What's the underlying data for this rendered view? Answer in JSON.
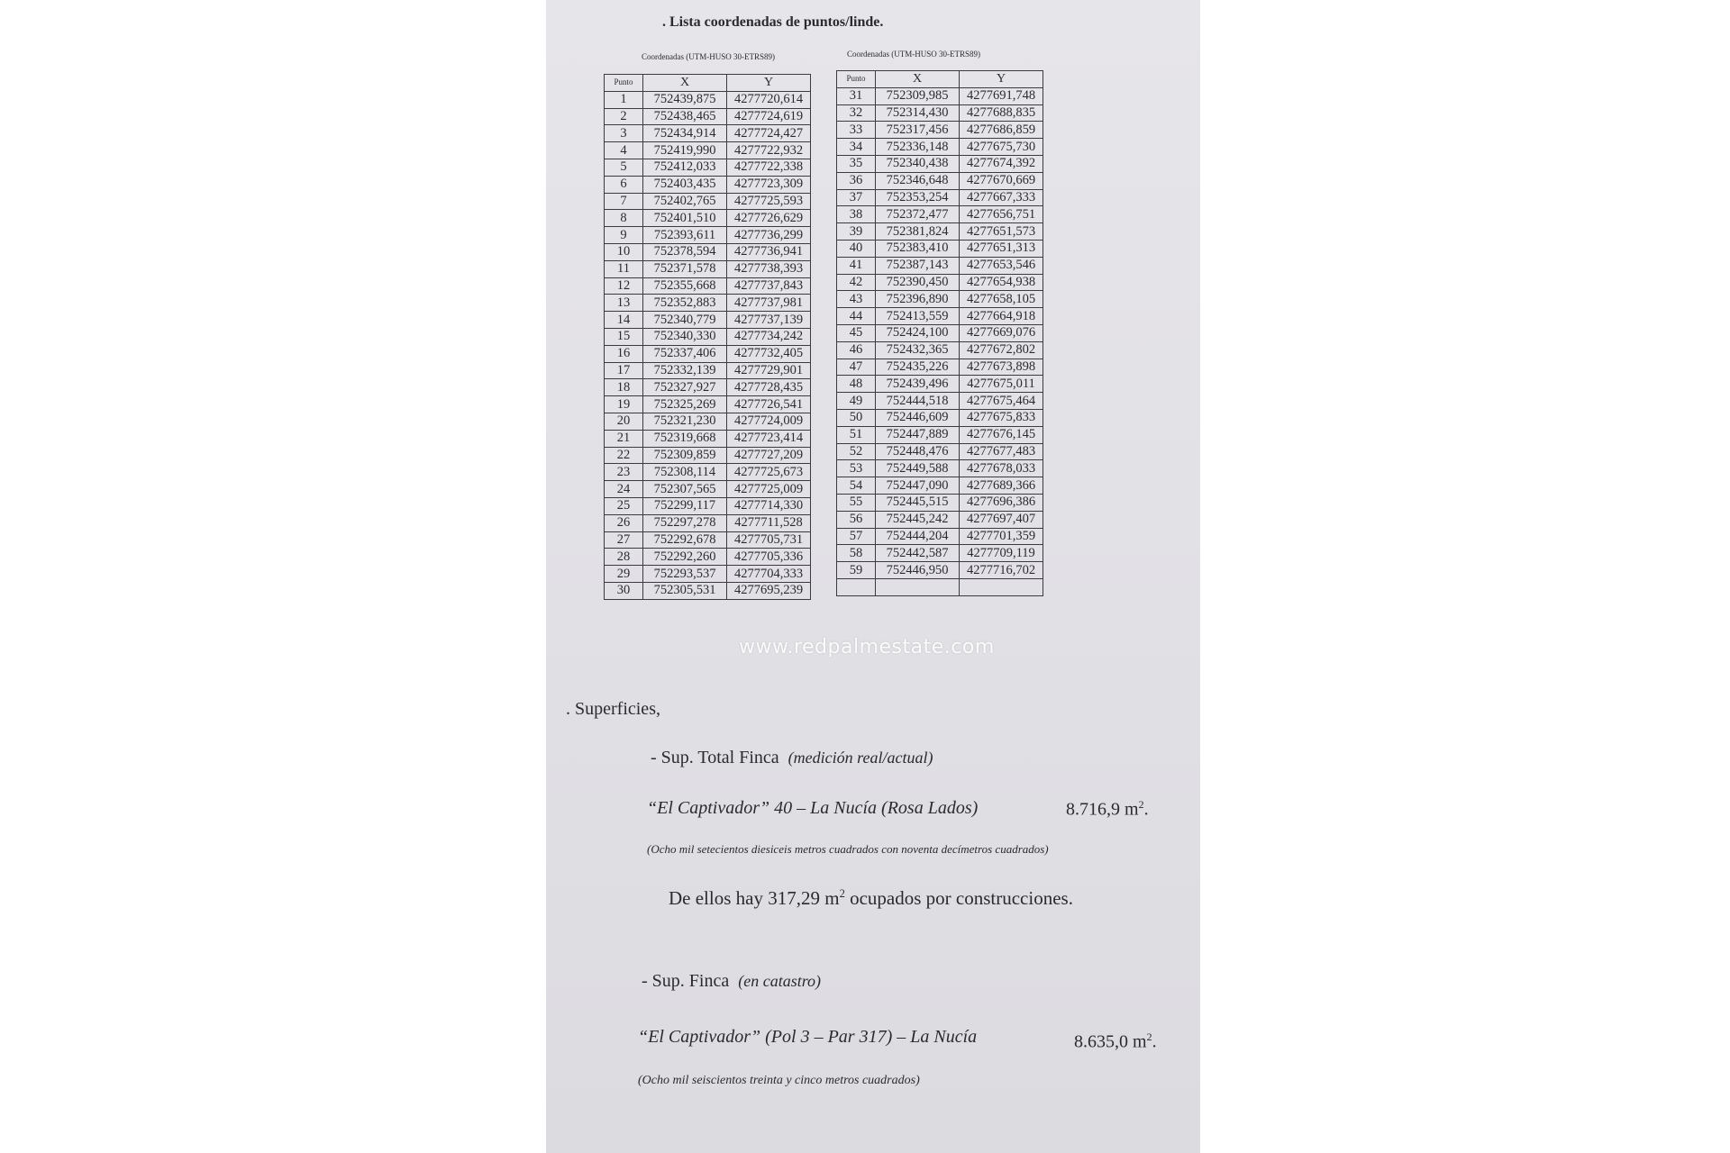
{
  "document": {
    "title": ". Lista coordenadas de puntos/linde.",
    "caption_left": "Coordenadas (UTM-HUSO 30-ETRS89)",
    "caption_right": "Coordenadas (UTM-HUSO 30-ETRS89)",
    "columns": [
      "Punto",
      "X",
      "Y"
    ],
    "table_left": [
      [
        "1",
        "752439,875",
        "4277720,614"
      ],
      [
        "2",
        "752438,465",
        "4277724,619"
      ],
      [
        "3",
        "752434,914",
        "4277724,427"
      ],
      [
        "4",
        "752419,990",
        "4277722,932"
      ],
      [
        "5",
        "752412,033",
        "4277722,338"
      ],
      [
        "6",
        "752403,435",
        "4277723,309"
      ],
      [
        "7",
        "752402,765",
        "4277725,593"
      ],
      [
        "8",
        "752401,510",
        "4277726,629"
      ],
      [
        "9",
        "752393,611",
        "4277736,299"
      ],
      [
        "10",
        "752378,594",
        "4277736,941"
      ],
      [
        "11",
        "752371,578",
        "4277738,393"
      ],
      [
        "12",
        "752355,668",
        "4277737,843"
      ],
      [
        "13",
        "752352,883",
        "4277737,981"
      ],
      [
        "14",
        "752340,779",
        "4277737,139"
      ],
      [
        "15",
        "752340,330",
        "4277734,242"
      ],
      [
        "16",
        "752337,406",
        "4277732,405"
      ],
      [
        "17",
        "752332,139",
        "4277729,901"
      ],
      [
        "18",
        "752327,927",
        "4277728,435"
      ],
      [
        "19",
        "752325,269",
        "4277726,541"
      ],
      [
        "20",
        "752321,230",
        "4277724,009"
      ],
      [
        "21",
        "752319,668",
        "4277723,414"
      ],
      [
        "22",
        "752309,859",
        "4277727,209"
      ],
      [
        "23",
        "752308,114",
        "4277725,673"
      ],
      [
        "24",
        "752307,565",
        "4277725,009"
      ],
      [
        "25",
        "752299,117",
        "4277714,330"
      ],
      [
        "26",
        "752297,278",
        "4277711,528"
      ],
      [
        "27",
        "752292,678",
        "4277705,731"
      ],
      [
        "28",
        "752292,260",
        "4277705,336"
      ],
      [
        "29",
        "752293,537",
        "4277704,333"
      ],
      [
        "30",
        "752305,531",
        "4277695,239"
      ]
    ],
    "table_right": [
      [
        "31",
        "752309,985",
        "4277691,748"
      ],
      [
        "32",
        "752314,430",
        "4277688,835"
      ],
      [
        "33",
        "752317,456",
        "4277686,859"
      ],
      [
        "34",
        "752336,148",
        "4277675,730"
      ],
      [
        "35",
        "752340,438",
        "4277674,392"
      ],
      [
        "36",
        "752346,648",
        "4277670,669"
      ],
      [
        "37",
        "752353,254",
        "4277667,333"
      ],
      [
        "38",
        "752372,477",
        "4277656,751"
      ],
      [
        "39",
        "752381,824",
        "4277651,573"
      ],
      [
        "40",
        "752383,410",
        "4277651,313"
      ],
      [
        "41",
        "752387,143",
        "4277653,546"
      ],
      [
        "42",
        "752390,450",
        "4277654,938"
      ],
      [
        "43",
        "752396,890",
        "4277658,105"
      ],
      [
        "44",
        "752413,559",
        "4277664,918"
      ],
      [
        "45",
        "752424,100",
        "4277669,076"
      ],
      [
        "46",
        "752432,365",
        "4277672,802"
      ],
      [
        "47",
        "752435,226",
        "4277673,898"
      ],
      [
        "48",
        "752439,496",
        "4277675,011"
      ],
      [
        "49",
        "752444,518",
        "4277675,464"
      ],
      [
        "50",
        "752446,609",
        "4277675,833"
      ],
      [
        "51",
        "752447,889",
        "4277676,145"
      ],
      [
        "52",
        "752448,476",
        "4277677,483"
      ],
      [
        "53",
        "752449,588",
        "4277678,033"
      ],
      [
        "54",
        "752447,090",
        "4277689,366"
      ],
      [
        "55",
        "752445,515",
        "4277696,386"
      ],
      [
        "56",
        "752445,242",
        "4277697,407"
      ],
      [
        "57",
        "752444,204",
        "4277701,359"
      ],
      [
        "58",
        "752442,587",
        "4277709,119"
      ],
      [
        "59",
        "752446,950",
        "4277716,702"
      ],
      [
        "",
        "",
        ""
      ]
    ],
    "watermark": "www.redpalmestate.com",
    "superficies_heading": ". Superficies,",
    "total": {
      "label": "-   Sup. Total Finca",
      "label_note": "(medición real/actual)",
      "name": "“El Captivador” 40 – La Nucía  (Rosa Lados)",
      "value": "8.716,9 m",
      "value_sup": "2",
      "words": "(Ocho mil setecientos diesiceis metros cuadrados con noventa decímetros cuadrados)",
      "built_pre": "De ellos hay 317,29 m",
      "built_sup": "2",
      "built_post": " ocupados por construcciones."
    },
    "catastro": {
      "label": "-   Sup. Finca",
      "label_note": "(en catastro)",
      "name": "“El Captivador” (Pol 3 – Par 317) – La Nucía",
      "value": "8.635,0 m",
      "value_sup": "2",
      "words": "(Ocho mil seiscientos treinta y cinco metros cuadrados)"
    }
  }
}
